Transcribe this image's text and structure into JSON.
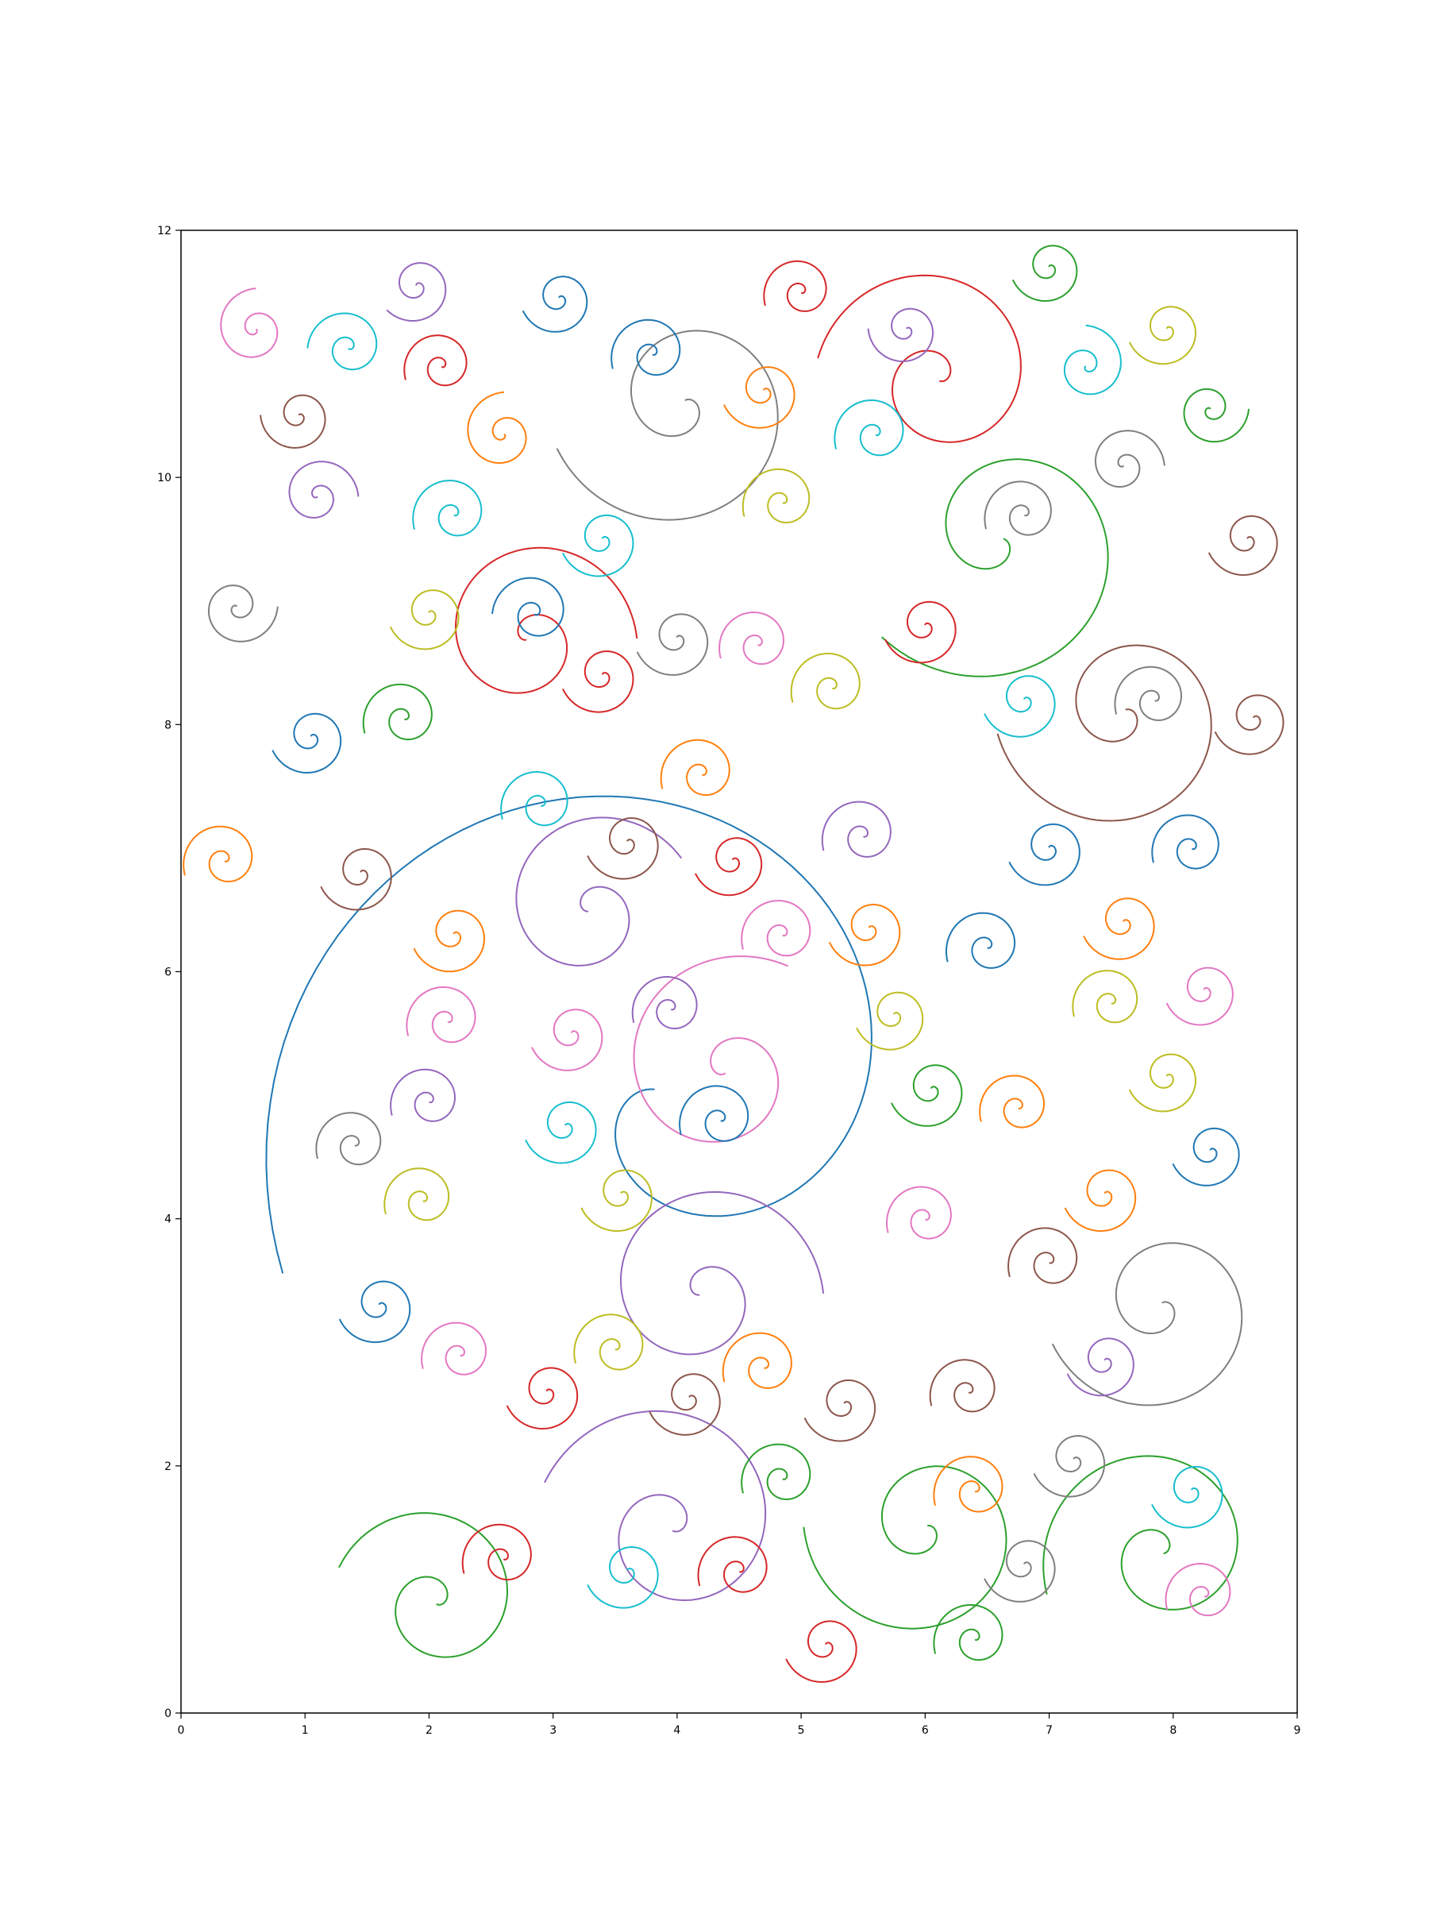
{
  "chart_data": {
    "type": "line",
    "title": "",
    "xlabel": "",
    "ylabel": "",
    "xlim": [
      0,
      9
    ],
    "ylim": [
      0,
      12
    ],
    "x_ticks": [
      0,
      1,
      2,
      3,
      4,
      5,
      6,
      7,
      8,
      9
    ],
    "y_ticks": [
      0,
      2,
      4,
      6,
      8,
      10,
      12
    ],
    "grid": false,
    "legend": "none",
    "description_of_marks": "spiral curves; each entry gives center (cx, cy) in data units, outer radius r, number of turns, rotation direction and start angle in degrees",
    "palette": [
      "#1f77b4",
      "#ff7f0e",
      "#2ca02c",
      "#d62728",
      "#9467bd",
      "#8c564b",
      "#e377c2",
      "#7f7f7f",
      "#bcbd22",
      "#17becf"
    ],
    "spirals": [
      {
        "cx": 3.9,
        "cy": 5.0,
        "r": 3.3,
        "turns": 1.15,
        "dir": -1,
        "start": 205,
        "color": "#1f77b4"
      },
      {
        "cx": 4.4,
        "cy": 5.2,
        "r": 0.95,
        "turns": 1.5,
        "dir": 1,
        "start": 60,
        "color": "#e377c2"
      },
      {
        "cx": 3.3,
        "cy": 6.5,
        "r": 0.82,
        "turns": 1.5,
        "dir": 1,
        "start": 30,
        "color": "#9467bd"
      },
      {
        "cx": 2.8,
        "cy": 8.7,
        "r": 0.85,
        "turns": 1.6,
        "dir": 1,
        "start": 0,
        "color": "#d62728"
      },
      {
        "cx": 4.05,
        "cy": 10.6,
        "r": 1.05,
        "turns": 1.6,
        "dir": 1,
        "start": 200,
        "color": "#7f7f7f"
      },
      {
        "cx": 6.1,
        "cy": 10.8,
        "r": 0.95,
        "turns": 1.6,
        "dir": -1,
        "start": 170,
        "color": "#d62728"
      },
      {
        "cx": 6.6,
        "cy": 9.5,
        "r": 1.2,
        "turns": 1.4,
        "dir": 1,
        "start": 220,
        "color": "#2ca02c"
      },
      {
        "cx": 7.6,
        "cy": 8.1,
        "r": 1.0,
        "turns": 1.6,
        "dir": 1,
        "start": 190,
        "color": "#8c564b"
      },
      {
        "cx": 4.2,
        "cy": 3.4,
        "r": 0.95,
        "turns": 1.6,
        "dir": 1,
        "start": 0,
        "color": "#9467bd"
      },
      {
        "cx": 3.95,
        "cy": 1.5,
        "r": 1.05,
        "turns": 1.6,
        "dir": -1,
        "start": 160,
        "color": "#9467bd"
      },
      {
        "cx": 6.0,
        "cy": 1.5,
        "r": 0.95,
        "turns": 1.6,
        "dir": 1,
        "start": 180,
        "color": "#2ca02c"
      },
      {
        "cx": 7.9,
        "cy": 1.3,
        "r": 0.95,
        "turns": 1.6,
        "dir": -1,
        "start": 200,
        "color": "#2ca02c"
      },
      {
        "cx": 7.9,
        "cy": 3.3,
        "r": 0.9,
        "turns": 1.6,
        "dir": 1,
        "start": 200,
        "color": "#7f7f7f"
      },
      {
        "cx": 2.05,
        "cy": 0.9,
        "r": 0.8,
        "turns": 1.6,
        "dir": -1,
        "start": 160,
        "color": "#2ca02c"
      },
      {
        "cx": 0.6,
        "cy": 11.2,
        "r": 0.32,
        "turns": 1.7,
        "dir": 1,
        "start": 90,
        "color": "#e377c2"
      },
      {
        "cx": 1.35,
        "cy": 11.05,
        "r": 0.32,
        "turns": 1.7,
        "dir": -1,
        "start": 180,
        "color": "#17becf"
      },
      {
        "cx": 1.9,
        "cy": 11.55,
        "r": 0.3,
        "turns": 1.7,
        "dir": 1,
        "start": 220,
        "color": "#9467bd"
      },
      {
        "cx": 0.95,
        "cy": 10.5,
        "r": 0.3,
        "turns": 1.7,
        "dir": 1,
        "start": 180,
        "color": "#8c564b"
      },
      {
        "cx": 2.1,
        "cy": 10.9,
        "r": 0.3,
        "turns": 1.7,
        "dir": -1,
        "start": 200,
        "color": "#d62728"
      },
      {
        "cx": 2.6,
        "cy": 10.35,
        "r": 0.33,
        "turns": 1.7,
        "dir": 1,
        "start": 90,
        "color": "#ff7f0e"
      },
      {
        "cx": 1.1,
        "cy": 9.85,
        "r": 0.32,
        "turns": 1.7,
        "dir": 1,
        "start": 0,
        "color": "#9467bd"
      },
      {
        "cx": 2.2,
        "cy": 9.7,
        "r": 0.33,
        "turns": 1.7,
        "dir": -1,
        "start": 200,
        "color": "#17becf"
      },
      {
        "cx": 3.05,
        "cy": 11.45,
        "r": 0.3,
        "turns": 1.7,
        "dir": 1,
        "start": 200,
        "color": "#1f77b4"
      },
      {
        "cx": 3.8,
        "cy": 11.0,
        "r": 0.33,
        "turns": 1.7,
        "dir": -1,
        "start": 200,
        "color": "#1f77b4"
      },
      {
        "cx": 4.7,
        "cy": 10.7,
        "r": 0.33,
        "turns": 1.7,
        "dir": 1,
        "start": 200,
        "color": "#ff7f0e"
      },
      {
        "cx": 5.0,
        "cy": 11.5,
        "r": 0.3,
        "turns": 1.7,
        "dir": -1,
        "start": 200,
        "color": "#d62728"
      },
      {
        "cx": 5.85,
        "cy": 11.2,
        "r": 0.3,
        "turns": 1.7,
        "dir": 1,
        "start": 180,
        "color": "#9467bd"
      },
      {
        "cx": 5.6,
        "cy": 10.35,
        "r": 0.33,
        "turns": 1.7,
        "dir": -1,
        "start": 200,
        "color": "#17becf"
      },
      {
        "cx": 7.0,
        "cy": 11.7,
        "r": 0.3,
        "turns": 1.7,
        "dir": 1,
        "start": 200,
        "color": "#2ca02c"
      },
      {
        "cx": 7.3,
        "cy": 10.9,
        "r": 0.32,
        "turns": 1.7,
        "dir": -1,
        "start": 90,
        "color": "#17becf"
      },
      {
        "cx": 7.95,
        "cy": 11.2,
        "r": 0.31,
        "turns": 1.7,
        "dir": 1,
        "start": 200,
        "color": "#bcbd22"
      },
      {
        "cx": 8.3,
        "cy": 10.55,
        "r": 0.3,
        "turns": 1.7,
        "dir": -1,
        "start": 0,
        "color": "#2ca02c"
      },
      {
        "cx": 7.6,
        "cy": 10.1,
        "r": 0.32,
        "turns": 1.7,
        "dir": 1,
        "start": 0,
        "color": "#7f7f7f"
      },
      {
        "cx": 6.8,
        "cy": 9.7,
        "r": 0.32,
        "turns": 1.7,
        "dir": -1,
        "start": 200,
        "color": "#7f7f7f"
      },
      {
        "cx": 8.6,
        "cy": 9.5,
        "r": 0.32,
        "turns": 1.7,
        "dir": 1,
        "start": 200,
        "color": "#8c564b"
      },
      {
        "cx": 0.45,
        "cy": 8.95,
        "r": 0.32,
        "turns": 1.7,
        "dir": -1,
        "start": 0,
        "color": "#7f7f7f"
      },
      {
        "cx": 2.0,
        "cy": 8.9,
        "r": 0.32,
        "turns": 1.7,
        "dir": 1,
        "start": 200,
        "color": "#bcbd22"
      },
      {
        "cx": 2.85,
        "cy": 8.9,
        "r": 0.33,
        "turns": 1.7,
        "dir": -1,
        "start": 180,
        "color": "#1f77b4"
      },
      {
        "cx": 3.4,
        "cy": 9.5,
        "r": 0.33,
        "turns": 1.7,
        "dir": 1,
        "start": 200,
        "color": "#17becf"
      },
      {
        "cx": 4.85,
        "cy": 9.8,
        "r": 0.32,
        "turns": 1.7,
        "dir": -1,
        "start": 200,
        "color": "#bcbd22"
      },
      {
        "cx": 4.0,
        "cy": 8.7,
        "r": 0.33,
        "turns": 1.7,
        "dir": 1,
        "start": 200,
        "color": "#7f7f7f"
      },
      {
        "cx": 4.65,
        "cy": 8.65,
        "r": 0.31,
        "turns": 1.7,
        "dir": -1,
        "start": 200,
        "color": "#e377c2"
      },
      {
        "cx": 3.4,
        "cy": 8.4,
        "r": 0.33,
        "turns": 1.7,
        "dir": 1,
        "start": 200,
        "color": "#d62728"
      },
      {
        "cx": 5.25,
        "cy": 8.3,
        "r": 0.33,
        "turns": 1.7,
        "dir": -1,
        "start": 200,
        "color": "#bcbd22"
      },
      {
        "cx": 6.0,
        "cy": 8.8,
        "r": 0.33,
        "turns": 1.7,
        "dir": 1,
        "start": 200,
        "color": "#d62728"
      },
      {
        "cx": 1.05,
        "cy": 7.9,
        "r": 0.32,
        "turns": 1.7,
        "dir": 1,
        "start": 200,
        "color": "#1f77b4"
      },
      {
        "cx": 1.8,
        "cy": 8.05,
        "r": 0.33,
        "turns": 1.7,
        "dir": -1,
        "start": 200,
        "color": "#2ca02c"
      },
      {
        "cx": 6.8,
        "cy": 8.2,
        "r": 0.33,
        "turns": 1.7,
        "dir": 1,
        "start": 200,
        "color": "#17becf"
      },
      {
        "cx": 7.85,
        "cy": 8.2,
        "r": 0.32,
        "turns": 1.7,
        "dir": -1,
        "start": 200,
        "color": "#7f7f7f"
      },
      {
        "cx": 8.65,
        "cy": 8.05,
        "r": 0.32,
        "turns": 1.7,
        "dir": 1,
        "start": 200,
        "color": "#8c564b"
      },
      {
        "cx": 0.35,
        "cy": 6.9,
        "r": 0.33,
        "turns": 1.7,
        "dir": -1,
        "start": 200,
        "color": "#ff7f0e"
      },
      {
        "cx": 1.45,
        "cy": 6.8,
        "r": 0.33,
        "turns": 1.7,
        "dir": 1,
        "start": 200,
        "color": "#8c564b"
      },
      {
        "cx": 2.9,
        "cy": 7.35,
        "r": 0.32,
        "turns": 1.7,
        "dir": -1,
        "start": 200,
        "color": "#17becf"
      },
      {
        "cx": 3.6,
        "cy": 7.05,
        "r": 0.33,
        "turns": 1.7,
        "dir": 1,
        "start": 200,
        "color": "#8c564b"
      },
      {
        "cx": 4.2,
        "cy": 7.6,
        "r": 0.33,
        "turns": 1.7,
        "dir": -1,
        "start": 200,
        "color": "#ff7f0e"
      },
      {
        "cx": 4.45,
        "cy": 6.9,
        "r": 0.31,
        "turns": 1.7,
        "dir": 1,
        "start": 200,
        "color": "#d62728"
      },
      {
        "cx": 5.5,
        "cy": 7.1,
        "r": 0.33,
        "turns": 1.7,
        "dir": -1,
        "start": 200,
        "color": "#9467bd"
      },
      {
        "cx": 7.0,
        "cy": 7.0,
        "r": 0.33,
        "turns": 1.7,
        "dir": 1,
        "start": 200,
        "color": "#1f77b4"
      },
      {
        "cx": 8.15,
        "cy": 7.0,
        "r": 0.32,
        "turns": 1.7,
        "dir": -1,
        "start": 200,
        "color": "#1f77b4"
      },
      {
        "cx": 2.2,
        "cy": 6.3,
        "r": 0.33,
        "turns": 1.7,
        "dir": 1,
        "start": 200,
        "color": "#ff7f0e"
      },
      {
        "cx": 4.85,
        "cy": 6.3,
        "r": 0.33,
        "turns": 1.7,
        "dir": -1,
        "start": 200,
        "color": "#e377c2"
      },
      {
        "cx": 5.55,
        "cy": 6.35,
        "r": 0.33,
        "turns": 1.7,
        "dir": 1,
        "start": 200,
        "color": "#ff7f0e"
      },
      {
        "cx": 6.5,
        "cy": 6.2,
        "r": 0.33,
        "turns": 1.7,
        "dir": -1,
        "start": 200,
        "color": "#1f77b4"
      },
      {
        "cx": 7.6,
        "cy": 6.4,
        "r": 0.33,
        "turns": 1.7,
        "dir": 1,
        "start": 200,
        "color": "#ff7f0e"
      },
      {
        "cx": 2.15,
        "cy": 5.6,
        "r": 0.33,
        "turns": 1.7,
        "dir": -1,
        "start": 200,
        "color": "#e377c2"
      },
      {
        "cx": 3.15,
        "cy": 5.5,
        "r": 0.33,
        "turns": 1.7,
        "dir": 1,
        "start": 200,
        "color": "#e377c2"
      },
      {
        "cx": 3.95,
        "cy": 5.7,
        "r": 0.31,
        "turns": 1.7,
        "dir": -1,
        "start": 200,
        "color": "#9467bd"
      },
      {
        "cx": 5.75,
        "cy": 5.65,
        "r": 0.31,
        "turns": 1.7,
        "dir": 1,
        "start": 200,
        "color": "#bcbd22"
      },
      {
        "cx": 7.5,
        "cy": 5.75,
        "r": 0.31,
        "turns": 1.7,
        "dir": -1,
        "start": 200,
        "color": "#bcbd22"
      },
      {
        "cx": 8.25,
        "cy": 5.85,
        "r": 0.31,
        "turns": 1.7,
        "dir": 1,
        "start": 200,
        "color": "#e377c2"
      },
      {
        "cx": 2.0,
        "cy": 4.95,
        "r": 0.31,
        "turns": 1.7,
        "dir": -1,
        "start": 200,
        "color": "#9467bd"
      },
      {
        "cx": 3.1,
        "cy": 4.75,
        "r": 0.33,
        "turns": 1.7,
        "dir": 1,
        "start": 200,
        "color": "#17becf"
      },
      {
        "cx": 4.35,
        "cy": 4.8,
        "r": 0.33,
        "turns": 1.7,
        "dir": -1,
        "start": 200,
        "color": "#1f77b4"
      },
      {
        "cx": 6.05,
        "cy": 5.05,
        "r": 0.33,
        "turns": 1.7,
        "dir": 1,
        "start": 200,
        "color": "#2ca02c"
      },
      {
        "cx": 6.75,
        "cy": 4.9,
        "r": 0.31,
        "turns": 1.7,
        "dir": -1,
        "start": 200,
        "color": "#ff7f0e"
      },
      {
        "cx": 7.95,
        "cy": 5.15,
        "r": 0.31,
        "turns": 1.7,
        "dir": 1,
        "start": 200,
        "color": "#bcbd22"
      },
      {
        "cx": 1.4,
        "cy": 4.6,
        "r": 0.31,
        "turns": 1.7,
        "dir": -1,
        "start": 200,
        "color": "#7f7f7f"
      },
      {
        "cx": 8.3,
        "cy": 4.55,
        "r": 0.31,
        "turns": 1.7,
        "dir": 1,
        "start": 200,
        "color": "#1f77b4"
      },
      {
        "cx": 1.95,
        "cy": 4.15,
        "r": 0.31,
        "turns": 1.7,
        "dir": -1,
        "start": 200,
        "color": "#bcbd22"
      },
      {
        "cx": 3.55,
        "cy": 4.2,
        "r": 0.33,
        "turns": 1.7,
        "dir": 1,
        "start": 200,
        "color": "#bcbd22"
      },
      {
        "cx": 6.0,
        "cy": 4.0,
        "r": 0.31,
        "turns": 1.7,
        "dir": -1,
        "start": 200,
        "color": "#e377c2"
      },
      {
        "cx": 7.45,
        "cy": 4.2,
        "r": 0.33,
        "turns": 1.7,
        "dir": 1,
        "start": 200,
        "color": "#ff7f0e"
      },
      {
        "cx": 7.0,
        "cy": 3.65,
        "r": 0.33,
        "turns": 1.7,
        "dir": -1,
        "start": 200,
        "color": "#8c564b"
      },
      {
        "cx": 1.6,
        "cy": 3.3,
        "r": 0.33,
        "turns": 1.7,
        "dir": 1,
        "start": 200,
        "color": "#1f77b4"
      },
      {
        "cx": 2.25,
        "cy": 2.9,
        "r": 0.31,
        "turns": 1.7,
        "dir": -1,
        "start": 200,
        "color": "#e377c2"
      },
      {
        "cx": 2.95,
        "cy": 2.6,
        "r": 0.33,
        "turns": 1.7,
        "dir": 1,
        "start": 200,
        "color": "#d62728"
      },
      {
        "cx": 3.5,
        "cy": 2.95,
        "r": 0.33,
        "turns": 1.7,
        "dir": -1,
        "start": 200,
        "color": "#bcbd22"
      },
      {
        "cx": 4.1,
        "cy": 2.55,
        "r": 0.33,
        "turns": 1.7,
        "dir": 1,
        "start": 200,
        "color": "#8c564b"
      },
      {
        "cx": 4.7,
        "cy": 2.8,
        "r": 0.33,
        "turns": 1.7,
        "dir": -1,
        "start": 200,
        "color": "#ff7f0e"
      },
      {
        "cx": 5.35,
        "cy": 2.5,
        "r": 0.33,
        "turns": 1.7,
        "dir": 1,
        "start": 200,
        "color": "#8c564b"
      },
      {
        "cx": 6.35,
        "cy": 2.6,
        "r": 0.31,
        "turns": 1.7,
        "dir": -1,
        "start": 200,
        "color": "#8c564b"
      },
      {
        "cx": 7.45,
        "cy": 2.85,
        "r": 0.31,
        "turns": 1.7,
        "dir": 1,
        "start": 200,
        "color": "#9467bd"
      },
      {
        "cx": 4.85,
        "cy": 1.9,
        "r": 0.33,
        "turns": 1.7,
        "dir": -1,
        "start": 200,
        "color": "#2ca02c"
      },
      {
        "cx": 7.2,
        "cy": 2.05,
        "r": 0.33,
        "turns": 1.7,
        "dir": 1,
        "start": 200,
        "color": "#7f7f7f"
      },
      {
        "cx": 6.4,
        "cy": 1.8,
        "r": 0.33,
        "turns": 1.7,
        "dir": -1,
        "start": 200,
        "color": "#ff7f0e"
      },
      {
        "cx": 8.15,
        "cy": 1.8,
        "r": 0.33,
        "turns": 1.7,
        "dir": 1,
        "start": 200,
        "color": "#17becf"
      },
      {
        "cx": 2.6,
        "cy": 1.25,
        "r": 0.33,
        "turns": 1.7,
        "dir": -1,
        "start": 200,
        "color": "#d62728"
      },
      {
        "cx": 3.6,
        "cy": 1.15,
        "r": 0.33,
        "turns": 1.7,
        "dir": 1,
        "start": 200,
        "color": "#17becf"
      },
      {
        "cx": 4.5,
        "cy": 1.15,
        "r": 0.33,
        "turns": 1.7,
        "dir": -1,
        "start": 200,
        "color": "#d62728"
      },
      {
        "cx": 6.8,
        "cy": 1.2,
        "r": 0.33,
        "turns": 1.7,
        "dir": 1,
        "start": 200,
        "color": "#7f7f7f"
      },
      {
        "cx": 8.25,
        "cy": 0.95,
        "r": 0.31,
        "turns": 1.7,
        "dir": -1,
        "start": 200,
        "color": "#e377c2"
      },
      {
        "cx": 5.2,
        "cy": 0.55,
        "r": 0.33,
        "turns": 1.7,
        "dir": 1,
        "start": 200,
        "color": "#d62728"
      },
      {
        "cx": 6.4,
        "cy": 0.6,
        "r": 0.33,
        "turns": 1.7,
        "dir": -1,
        "start": 200,
        "color": "#2ca02c"
      }
    ]
  }
}
